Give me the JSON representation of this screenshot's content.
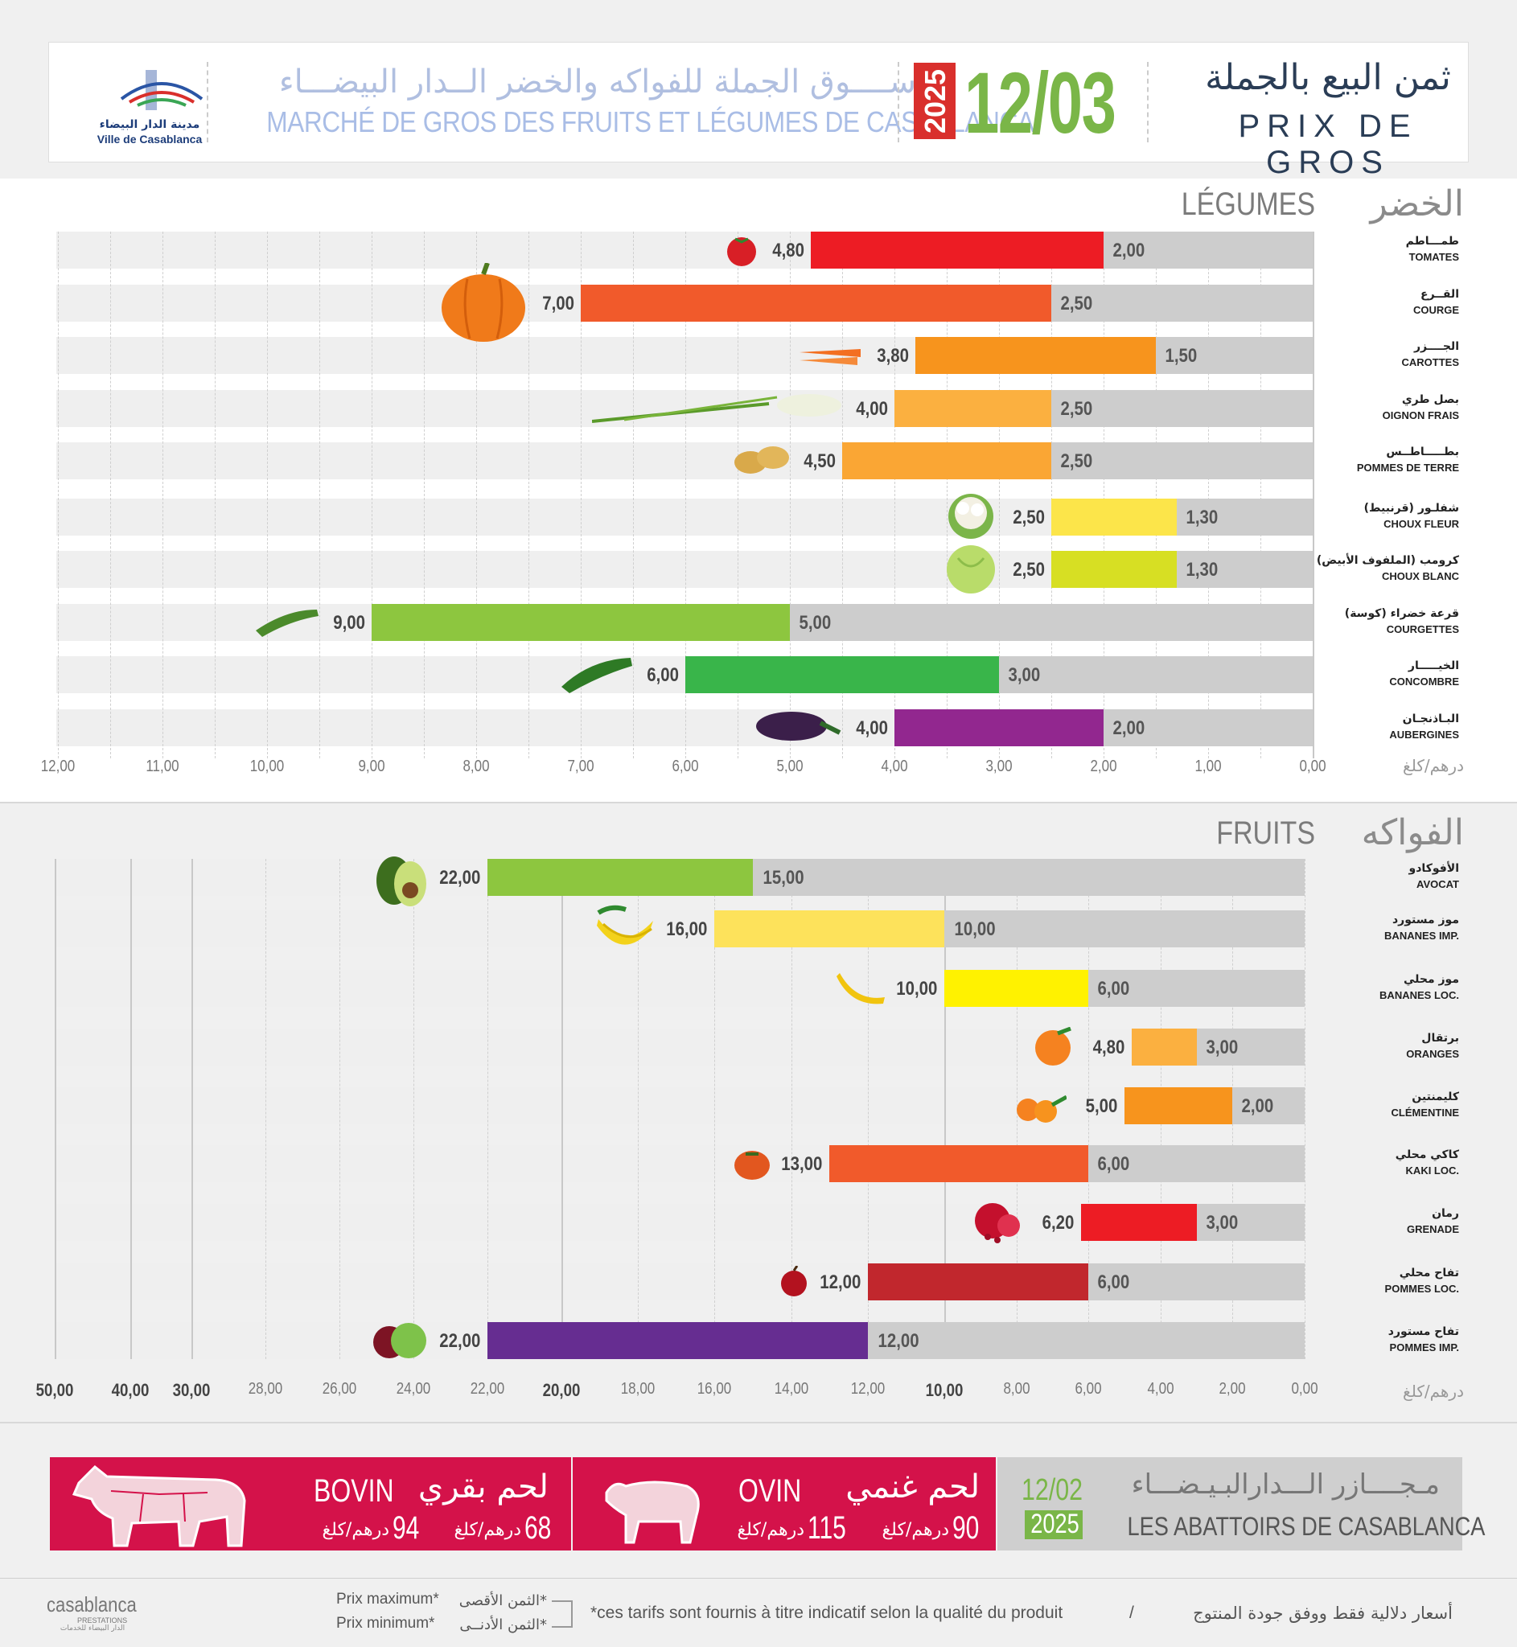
{
  "header": {
    "logo_ar": "مدينة الدار البيضاء",
    "logo_fr": "Ville de Casablanca",
    "market_ar": "ســــوق الجملة للفواكه والخضر الــدار البيضـــاء",
    "market_fr": "MARCHÉ DE GROS DES FRUITS ET LÉGUMES DE CASABLANCA",
    "year": "2025",
    "date": "12/03",
    "title_ar": "ثمن البيع بالجملة",
    "title_fr": "PRIX DE GROS"
  },
  "colors": {
    "accent_green": "#7ab648",
    "accent_red": "#d92f2c",
    "meat_red": "#d4124a",
    "min_bar": "#cdcdcd"
  },
  "chart_data": [
    {
      "type": "bar",
      "orientation": "horizontal",
      "title_ar": "الخضر",
      "title_fr": "LÉGUMES",
      "unit": "درهم/كلغ",
      "xlim": [
        12,
        0
      ],
      "ticks": [
        "12,00",
        "11,00",
        "10,00",
        "9,00",
        "8,00",
        "7,00",
        "6,00",
        "5,00",
        "4,00",
        "3,00",
        "2,00",
        "1,00",
        "0,00"
      ],
      "grid": true,
      "items": [
        {
          "ar": "طمـــاطم",
          "fr": "TOMATES",
          "min": 2.0,
          "max": 4.8,
          "min_label": "2,00",
          "max_label": "4,80",
          "color": "#ed1c24",
          "icon": "tomato-icon"
        },
        {
          "ar": "القــرع",
          "fr": "COURGE",
          "min": 2.5,
          "max": 7.0,
          "min_label": "2,50",
          "max_label": "7,00",
          "color": "#f15a2b",
          "icon": "pumpkin-icon"
        },
        {
          "ar": "الجــــزر",
          "fr": "CAROTTES",
          "min": 1.5,
          "max": 3.8,
          "min_label": "1,50",
          "max_label": "3,80",
          "color": "#f7941d",
          "icon": "carrot-icon"
        },
        {
          "ar": "بصل طري",
          "fr": "OIGNON FRAIS",
          "min": 2.5,
          "max": 4.0,
          "min_label": "2,50",
          "max_label": "4,00",
          "color": "#fbb040",
          "icon": "onion-icon"
        },
        {
          "ar": "بطـــــاطــس",
          "fr": "POMMES DE TERRE",
          "min": 2.5,
          "max": 4.5,
          "min_label": "2,50",
          "max_label": "4,50",
          "color": "#faa634",
          "icon": "potato-icon"
        },
        {
          "ar": "شفلـور (قرنبيط)",
          "fr": "CHOUX FLEUR",
          "min": 1.3,
          "max": 2.5,
          "min_label": "1,30",
          "max_label": "2,50",
          "color": "#fce54a",
          "icon": "cauliflower-icon"
        },
        {
          "ar": "كرومب (الملفوف الأبيض)",
          "fr": "CHOUX BLANC",
          "min": 1.3,
          "max": 2.5,
          "min_label": "1,30",
          "max_label": "2,50",
          "color": "#d7df23",
          "icon": "cabbage-icon"
        },
        {
          "ar": "قرعة خضراء (كوسة)",
          "fr": "COURGETTES",
          "min": 5.0,
          "max": 9.0,
          "min_label": "5,00",
          "max_label": "9,00",
          "color": "#8dc63f",
          "icon": "zucchini-icon"
        },
        {
          "ar": "الخيـــــار",
          "fr": "CONCOMBRE",
          "min": 3.0,
          "max": 6.0,
          "min_label": "3,00",
          "max_label": "6,00",
          "color": "#39b54a",
          "icon": "cucumber-icon"
        },
        {
          "ar": "البـاذنجـان",
          "fr": "AUBERGINES",
          "min": 2.0,
          "max": 4.0,
          "min_label": "2,00",
          "max_label": "4,00",
          "color": "#92278f",
          "icon": "eggplant-icon"
        }
      ]
    },
    {
      "type": "bar",
      "orientation": "horizontal",
      "title_ar": "الفواكه",
      "title_fr": "FRUITS",
      "unit": "درهم/كلغ",
      "scale": "piecewise",
      "ticks": [
        {
          "label": "50,00",
          "v": 50,
          "bold": true
        },
        {
          "label": "40,00",
          "v": 40,
          "bold": true
        },
        {
          "label": "30,00",
          "v": 30,
          "bold": true
        },
        {
          "label": "28,00",
          "v": 28
        },
        {
          "label": "26,00",
          "v": 26
        },
        {
          "label": "24,00",
          "v": 24
        },
        {
          "label": "22,00",
          "v": 22
        },
        {
          "label": "20,00",
          "v": 20,
          "bold": true
        },
        {
          "label": "18,00",
          "v": 18
        },
        {
          "label": "16,00",
          "v": 16
        },
        {
          "label": "14,00",
          "v": 14
        },
        {
          "label": "12,00",
          "v": 12
        },
        {
          "label": "10,00",
          "v": 10,
          "bold": true
        },
        {
          "label": "8,00",
          "v": 8
        },
        {
          "label": "6,00",
          "v": 6
        },
        {
          "label": "4,00",
          "v": 4
        },
        {
          "label": "2,00",
          "v": 2
        },
        {
          "label": "0,00",
          "v": 0
        }
      ],
      "grid": true,
      "items": [
        {
          "ar": "الأفوكادو",
          "fr": "AVOCAT",
          "min": 15.0,
          "max": 22.0,
          "min_label": "15,00",
          "max_label": "22,00",
          "color": "#8dc63f",
          "icon": "avocado-icon"
        },
        {
          "ar": "موز مستورد",
          "fr": "BANANES IMP.",
          "min": 10.0,
          "max": 16.0,
          "min_label": "10,00",
          "max_label": "16,00",
          "color": "#fde25b",
          "icon": "bananas-icon"
        },
        {
          "ar": "موز محلي",
          "fr": "BANANES LOC.",
          "min": 6.0,
          "max": 10.0,
          "min_label": "6,00",
          "max_label": "10,00",
          "color": "#fff200",
          "icon": "banana-icon"
        },
        {
          "ar": "برتقال",
          "fr": "ORANGES",
          "min": 3.0,
          "max": 4.8,
          "min_label": "3,00",
          "max_label": "4,80",
          "color": "#fbb040",
          "icon": "orange-icon"
        },
        {
          "ar": "كليمنتين",
          "fr": "CLÉMENTINE",
          "min": 2.0,
          "max": 5.0,
          "min_label": "2,00",
          "max_label": "5,00",
          "color": "#f7941d",
          "icon": "clementine-icon"
        },
        {
          "ar": "كاكي محلي",
          "fr": "KAKI LOC.",
          "min": 6.0,
          "max": 13.0,
          "min_label": "6,00",
          "max_label": "13,00",
          "color": "#f15a2b",
          "icon": "kaki-icon"
        },
        {
          "ar": "رمان",
          "fr": "GRENADE",
          "min": 3.0,
          "max": 6.2,
          "min_label": "3,00",
          "max_label": "6,20",
          "color": "#ed1c24",
          "icon": "pomegranate-icon"
        },
        {
          "ar": "تفاح محلي",
          "fr": "POMMES LOC.",
          "min": 6.0,
          "max": 12.0,
          "min_label": "6,00",
          "max_label": "12,00",
          "color": "#c1272d",
          "icon": "apple-red-icon"
        },
        {
          "ar": "تفاح مستورد",
          "fr": "POMMES IMP.",
          "min": 12.0,
          "max": 22.0,
          "min_label": "12,00",
          "max_label": "22,00",
          "color": "#662d91",
          "icon": "apples-icon"
        }
      ]
    }
  ],
  "meat": {
    "bovin": {
      "fr": "BOVIN",
      "ar": "لحم بقري",
      "price_max": "94",
      "price_min": "68",
      "unit": "درهم/كلغ"
    },
    "ovin": {
      "fr": "OVIN",
      "ar": "لحم غنمي",
      "price_max": "115",
      "price_min": "90",
      "unit": "درهم/كلغ"
    },
    "abattoirs": {
      "date": "12/02",
      "year": "2025",
      "ar": "مـجــــازر الـــدارالبـيـضـــاء",
      "fr": "LES ABATTOIRS DE CASABLANCA"
    }
  },
  "footer": {
    "brand_main": "casablanca",
    "brand_sub": "PRESTATIONS",
    "brand_ar": "الدار البيضاء للخدمات",
    "legend_max_fr": "Prix maximum*",
    "legend_min_fr": "Prix minimum*",
    "legend_max_ar": "*الثمن الأقصى",
    "legend_min_ar": "*الثمن الأدنــى",
    "note_fr": "*ces tarifs sont fournis à titre indicatif selon la qualité du produit",
    "separator": "/",
    "note_ar": "أسعار دلالية فقط ووفق جودة المنتوج"
  }
}
